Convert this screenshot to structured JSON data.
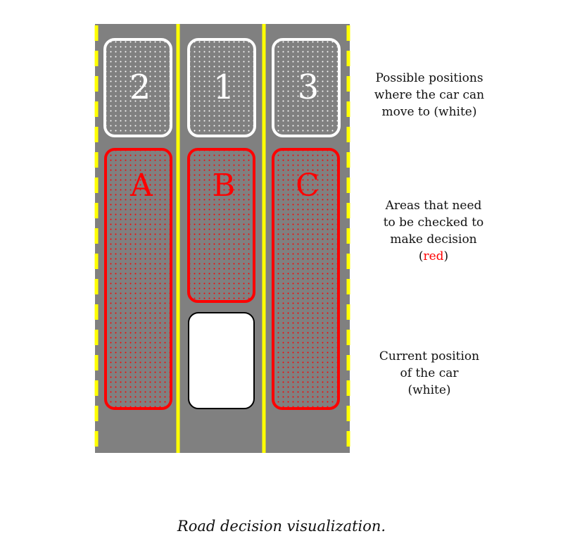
{
  "colors": {
    "road": "#808080",
    "lane_marking": "#ffff00",
    "possible_position": "#ffffff",
    "check_area": "#ff0000",
    "car": "#ffffff"
  },
  "lanes": [
    "left",
    "center",
    "right"
  ],
  "possible_positions": [
    {
      "lane": "left",
      "label": "2"
    },
    {
      "lane": "center",
      "label": "1"
    },
    {
      "lane": "right",
      "label": "3"
    }
  ],
  "check_areas": [
    {
      "lane": "left",
      "label": "A"
    },
    {
      "lane": "center",
      "label": "B"
    },
    {
      "lane": "right",
      "label": "C"
    }
  ],
  "car": {
    "lane": "center"
  },
  "notes": {
    "possible": [
      "Possible positions",
      "where the car can",
      "move to (white)"
    ],
    "areas": [
      "Areas that need",
      "to be checked to",
      "make decision"
    ],
    "areas_open": "(",
    "areas_red": "red",
    "areas_close": ")",
    "current": [
      "Current position",
      "of the car",
      "(white)"
    ]
  },
  "caption": "Road decision visualization."
}
